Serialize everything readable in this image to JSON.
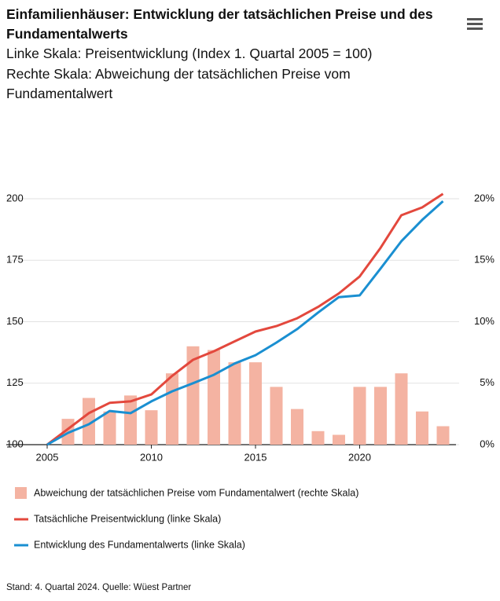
{
  "chart_data": {
    "type": "combo",
    "title": "Einfamilienhäuser: Entwicklung der tatsächlichen Preise und des Fundamentalwerts",
    "subtitle": [
      "Linke Skala: Preisentwicklung (Index 1. Quartal 2005 = 100)",
      "Rechte Skala: Abweichung der tatsächlichen Preise vom Fundamentalwert"
    ],
    "x": [
      2005,
      2006,
      2007,
      2008,
      2009,
      2010,
      2011,
      2012,
      2013,
      2014,
      2015,
      2016,
      2017,
      2018,
      2019,
      2020,
      2021,
      2022,
      2023,
      2024
    ],
    "series": [
      {
        "name": "Abweichung der tatsächlichen Preise vom Fundamentalwert (rechte Skala)",
        "type": "bar",
        "axis": "y2",
        "color": "#f4b3a2",
        "values": [
          null,
          2.1,
          3.8,
          2.7,
          4.0,
          2.8,
          5.8,
          8.0,
          7.7,
          6.7,
          6.7,
          4.7,
          2.9,
          1.1,
          0.8,
          4.7,
          4.7,
          5.8,
          2.7,
          1.5
        ]
      },
      {
        "name": "Tatsächliche Preisentwicklung (linke Skala)",
        "type": "line",
        "axis": "y",
        "color": "#e3483d",
        "values": [
          100,
          106.4,
          112.8,
          117,
          117.6,
          120.4,
          128,
          134.5,
          138,
          142,
          146,
          148.2,
          151.4,
          156,
          161.5,
          168.4,
          180,
          193.3,
          196.5,
          202
        ]
      },
      {
        "name": "Entwicklung des Fundamentalwerts (linke Skala)",
        "type": "line",
        "axis": "y",
        "color": "#1a8fd1",
        "values": [
          100,
          104.8,
          108.3,
          113.7,
          112.8,
          117.6,
          121.7,
          125,
          128.4,
          133,
          136.4,
          141.5,
          147,
          153.7,
          160,
          160.7,
          171.6,
          182.7,
          191.4,
          199
        ]
      }
    ],
    "xlim": [
      2005,
      2025
    ],
    "xticks": [
      2005,
      2010,
      2015,
      2020
    ],
    "ylim": [
      100,
      200
    ],
    "yticks": [
      100,
      125,
      150,
      175,
      200
    ],
    "y2lim": [
      0,
      20
    ],
    "y2ticks": [
      {
        "value": 0,
        "label": "0%"
      },
      {
        "value": 5,
        "label": "5%"
      },
      {
        "value": 10,
        "label": "10%"
      },
      {
        "value": 15,
        "label": "15%"
      },
      {
        "value": 20,
        "label": "20%"
      }
    ],
    "grid": true,
    "source": "Stand: 4. Quartal 2024. Quelle: Wüest Partner"
  }
}
